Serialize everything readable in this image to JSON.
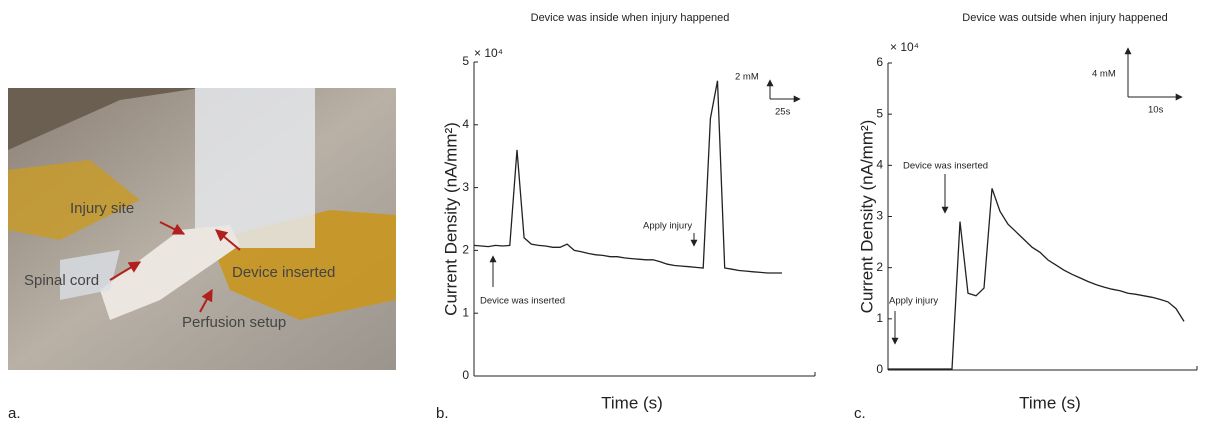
{
  "photo": {
    "panel_label": "a.",
    "labels": [
      "Injury site",
      "Device inserted",
      "Spinal cord",
      "Perfusion setup"
    ]
  },
  "chart_data": [
    {
      "type": "line",
      "panel_label": "b.",
      "title": "Device was inside when injury happened",
      "x_label": "Time (s)",
      "y_label": "Current Density (nA/mm²)",
      "y_multiplier": "× 10⁴",
      "color": "#222222",
      "values": [
        2.08,
        2.07,
        2.06,
        2.08,
        2.07,
        2.08,
        3.6,
        2.2,
        2.1,
        2.08,
        2.07,
        2.05,
        2.05,
        2.1,
        2.0,
        1.98,
        1.95,
        1.93,
        1.92,
        1.9,
        1.9,
        1.88,
        1.87,
        1.86,
        1.85,
        1.85,
        1.82,
        1.78,
        1.76,
        1.75,
        1.74,
        1.73,
        1.72,
        4.1,
        4.7,
        1.72,
        1.7,
        1.68,
        1.67,
        1.66,
        1.65,
        1.64,
        1.64,
        1.64
      ],
      "ylim": [
        0,
        5
      ],
      "yticks": [
        0,
        1,
        2,
        3,
        4,
        5
      ],
      "annotations": [
        "Device was inserted",
        "Apply injury",
        "2 mM",
        "25s"
      ]
    },
    {
      "type": "line",
      "panel_label": "c.",
      "title": "Device was outside when injury happened",
      "x_label": "Time (s)",
      "y_label": "Current Density (nA/mm²)",
      "y_multiplier": "× 10⁴",
      "color": "#222222",
      "values": [
        0.02,
        0.02,
        0.02,
        0.02,
        0.02,
        0.02,
        0.02,
        0.02,
        0.02,
        2.9,
        1.5,
        1.45,
        1.6,
        3.55,
        3.1,
        2.85,
        2.7,
        2.55,
        2.4,
        2.3,
        2.15,
        2.05,
        1.95,
        1.87,
        1.8,
        1.73,
        1.67,
        1.62,
        1.58,
        1.55,
        1.5,
        1.48,
        1.45,
        1.42,
        1.38,
        1.33,
        1.2,
        0.95
      ],
      "ylim": [
        0,
        6
      ],
      "yticks": [
        0,
        1,
        2,
        3,
        4,
        5,
        6
      ],
      "annotations": [
        "Device was inserted",
        "Apply injury",
        "4 mM",
        "10s"
      ]
    }
  ]
}
